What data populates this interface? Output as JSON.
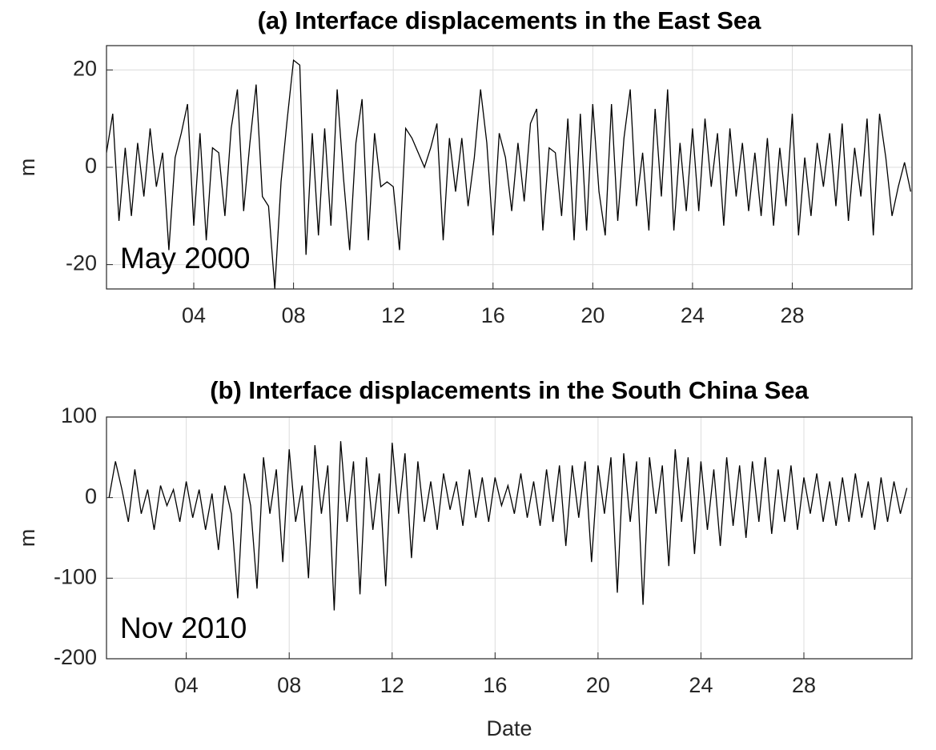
{
  "chart_data": [
    {
      "type": "line",
      "title": "(a) Interface displacements in the East Sea",
      "annotation": "May 2000",
      "ylabel": "m",
      "color": "#000000",
      "grid": true,
      "xlim": [
        0.5,
        32.8
      ],
      "xticks": [
        {
          "value": 4,
          "label": "04"
        },
        {
          "value": 8,
          "label": "08"
        },
        {
          "value": 12,
          "label": "12"
        },
        {
          "value": 16,
          "label": "16"
        },
        {
          "value": 20,
          "label": "20"
        },
        {
          "value": 24,
          "label": "24"
        },
        {
          "value": 28,
          "label": "28"
        }
      ],
      "ylim": [
        -25,
        25
      ],
      "yticks": [
        -20,
        0,
        20
      ],
      "x": [
        0.5,
        0.75,
        1,
        1.25,
        1.5,
        1.75,
        2,
        2.25,
        2.5,
        2.75,
        3,
        3.25,
        3.5,
        3.75,
        4,
        4.25,
        4.5,
        4.75,
        5,
        5.25,
        5.5,
        5.75,
        6,
        6.25,
        6.5,
        6.75,
        7,
        7.25,
        7.5,
        7.75,
        8,
        8.25,
        8.5,
        8.75,
        9,
        9.25,
        9.5,
        9.75,
        10,
        10.25,
        10.5,
        10.75,
        11,
        11.25,
        11.5,
        11.75,
        12,
        12.25,
        12.5,
        12.75,
        13,
        13.25,
        13.5,
        13.75,
        14,
        14.25,
        14.5,
        14.75,
        15,
        15.25,
        15.5,
        15.75,
        16,
        16.25,
        16.5,
        16.75,
        17,
        17.25,
        17.5,
        17.75,
        18,
        18.25,
        18.5,
        18.75,
        19,
        19.25,
        19.5,
        19.75,
        20,
        20.25,
        20.5,
        20.75,
        21,
        21.25,
        21.5,
        21.75,
        22,
        22.25,
        22.5,
        22.75,
        23,
        23.25,
        23.5,
        23.75,
        24,
        24.25,
        24.5,
        24.75,
        25,
        25.25,
        25.5,
        25.75,
        26,
        26.25,
        26.5,
        26.75,
        27,
        27.25,
        27.5,
        27.75,
        28,
        28.25,
        28.5,
        28.75,
        29,
        29.25,
        29.5,
        29.75,
        30,
        30.25,
        30.5,
        30.75,
        31,
        31.25,
        31.5,
        31.75,
        32,
        32.25,
        32.5,
        32.75
      ],
      "values": [
        3,
        11,
        -11,
        4,
        -10,
        5,
        -6,
        8,
        -4,
        3,
        -17,
        2,
        7,
        13,
        -12,
        7,
        -15,
        4,
        3,
        -10,
        8,
        16,
        -9,
        5,
        17,
        -6,
        -8,
        -25,
        -3,
        10,
        22,
        21,
        -18,
        7,
        -14,
        8,
        -12,
        16,
        -2,
        -17,
        5,
        14,
        -15,
        7,
        -4,
        -3,
        -4,
        -17,
        8,
        6,
        3,
        0,
        4,
        9,
        -15,
        6,
        -5,
        6,
        -8,
        2,
        16,
        5,
        -14,
        7,
        2,
        -9,
        5,
        -7,
        9,
        12,
        -13,
        4,
        3,
        -10,
        10,
        -15,
        11,
        -13,
        13,
        -5,
        -14,
        13,
        -11,
        6,
        16,
        -8,
        3,
        -13,
        12,
        -6,
        16,
        -13,
        5,
        -9,
        8,
        -9,
        10,
        -4,
        7,
        -12,
        8,
        -6,
        5,
        -9,
        3,
        -10,
        6,
        -12,
        4,
        -8,
        11,
        -14,
        2,
        -10,
        5,
        -4,
        7,
        -8,
        9,
        -11,
        4,
        -6,
        10,
        -14,
        11,
        2,
        -10,
        -4,
        1,
        -5
      ]
    },
    {
      "type": "line",
      "title": "(b) Interface displacements in the South China Sea",
      "annotation": "Nov 2010",
      "ylabel": "m",
      "xlabel": "Date",
      "color": "#000000",
      "grid": true,
      "xlim": [
        0.9,
        32.2
      ],
      "xticks": [
        {
          "value": 4,
          "label": "04"
        },
        {
          "value": 8,
          "label": "08"
        },
        {
          "value": 12,
          "label": "12"
        },
        {
          "value": 16,
          "label": "16"
        },
        {
          "value": 20,
          "label": "20"
        },
        {
          "value": 24,
          "label": "24"
        },
        {
          "value": 28,
          "label": "28"
        }
      ],
      "ylim": [
        -200,
        100
      ],
      "yticks": [
        -200,
        -100,
        0,
        100
      ],
      "x": [
        1,
        1.25,
        1.5,
        1.75,
        2,
        2.25,
        2.5,
        2.75,
        3,
        3.25,
        3.5,
        3.75,
        4,
        4.25,
        4.5,
        4.75,
        5,
        5.25,
        5.5,
        5.75,
        6,
        6.25,
        6.5,
        6.75,
        7,
        7.25,
        7.5,
        7.75,
        8,
        8.25,
        8.5,
        8.75,
        9,
        9.25,
        9.5,
        9.75,
        10,
        10.25,
        10.5,
        10.75,
        11,
        11.25,
        11.5,
        11.75,
        12,
        12.25,
        12.5,
        12.75,
        13,
        13.25,
        13.5,
        13.75,
        14,
        14.25,
        14.5,
        14.75,
        15,
        15.25,
        15.5,
        15.75,
        16,
        16.25,
        16.5,
        16.75,
        17,
        17.25,
        17.5,
        17.75,
        18,
        18.25,
        18.5,
        18.75,
        19,
        19.25,
        19.5,
        19.75,
        20,
        20.25,
        20.5,
        20.75,
        21,
        21.25,
        21.5,
        21.75,
        22,
        22.25,
        22.5,
        22.75,
        23,
        23.25,
        23.5,
        23.75,
        24,
        24.25,
        24.5,
        24.75,
        25,
        25.25,
        25.5,
        25.75,
        26,
        26.25,
        26.5,
        26.75,
        27,
        27.25,
        27.5,
        27.75,
        28,
        28.25,
        28.5,
        28.75,
        29,
        29.25,
        29.5,
        29.75,
        30,
        30.25,
        30.5,
        30.75,
        31,
        31.25,
        31.5,
        31.75,
        32
      ],
      "values": [
        0,
        45,
        10,
        -30,
        35,
        -20,
        10,
        -40,
        15,
        -10,
        10,
        -30,
        20,
        -25,
        10,
        -40,
        5,
        -65,
        15,
        -20,
        -125,
        30,
        -10,
        -113,
        50,
        -20,
        35,
        -80,
        60,
        -30,
        15,
        -100,
        65,
        -20,
        40,
        -140,
        70,
        -30,
        45,
        -120,
        50,
        -40,
        30,
        -110,
        68,
        -20,
        55,
        -75,
        45,
        -30,
        20,
        -40,
        30,
        -15,
        20,
        -35,
        35,
        -25,
        25,
        -30,
        25,
        -10,
        15,
        -20,
        30,
        -25,
        20,
        -35,
        35,
        -30,
        40,
        -60,
        40,
        -25,
        45,
        -80,
        40,
        -20,
        50,
        -118,
        55,
        -30,
        45,
        -133,
        50,
        -20,
        40,
        -85,
        60,
        -30,
        50,
        -70,
        45,
        -40,
        35,
        -60,
        50,
        -35,
        40,
        -50,
        45,
        -30,
        50,
        -45,
        35,
        -30,
        40,
        -40,
        25,
        -20,
        30,
        -30,
        20,
        -35,
        25,
        -30,
        30,
        -25,
        20,
        -40,
        25,
        -30,
        20,
        -20,
        12
      ]
    }
  ]
}
